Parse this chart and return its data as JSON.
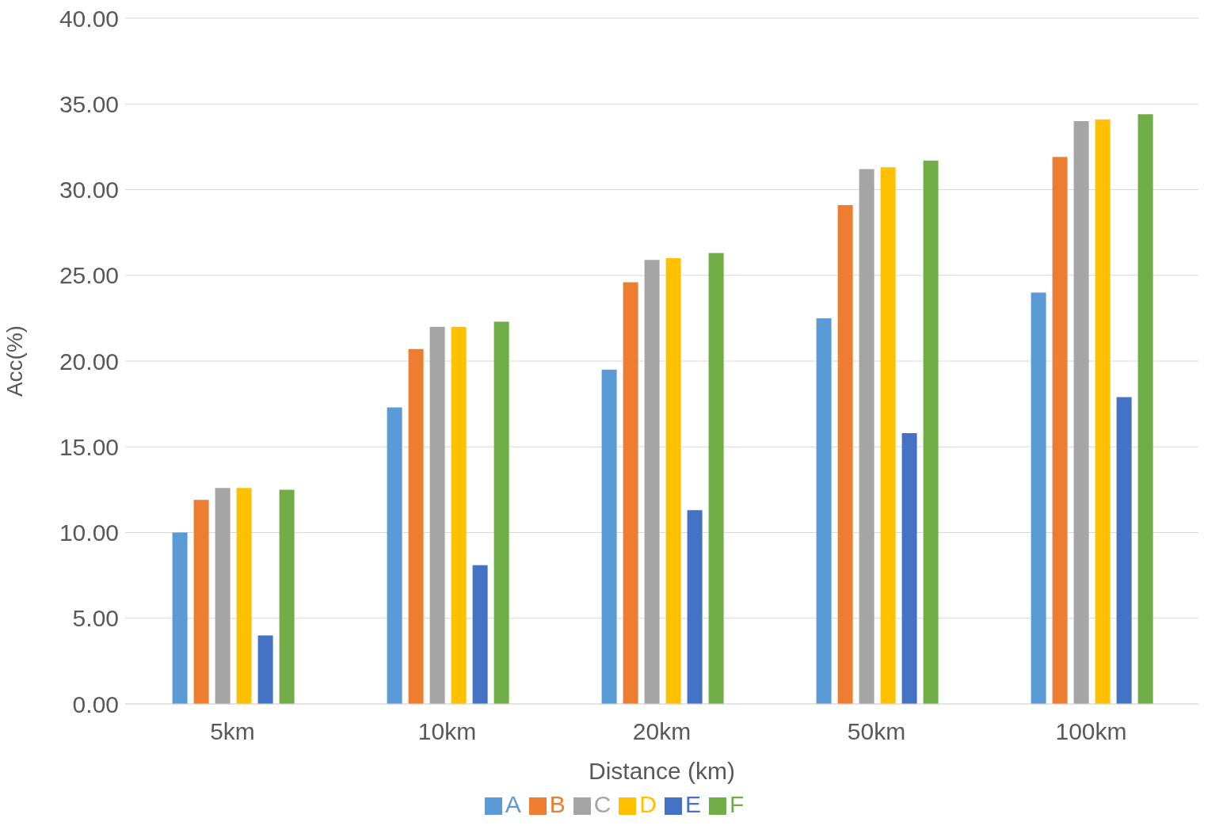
{
  "chart_data": {
    "type": "bar",
    "xlabel": "Distance (km)",
    "ylabel": "Acc(%)",
    "categories": [
      "5km",
      "10km",
      "20km",
      "50km",
      "100km"
    ],
    "series": [
      {
        "name": "A",
        "color": "#5b9bd5",
        "values": [
          10.0,
          17.3,
          19.5,
          22.5,
          24.0
        ]
      },
      {
        "name": "B",
        "color": "#ed7d31",
        "values": [
          11.9,
          20.7,
          24.6,
          29.1,
          31.9
        ]
      },
      {
        "name": "C",
        "color": "#a5a5a5",
        "values": [
          12.6,
          22.0,
          25.9,
          31.2,
          34.0
        ]
      },
      {
        "name": "D",
        "color": "#ffc000",
        "values": [
          12.6,
          22.0,
          26.0,
          31.3,
          34.1
        ]
      },
      {
        "name": "E",
        "color": "#4472c4",
        "values": [
          4.0,
          8.1,
          11.3,
          15.8,
          17.9
        ]
      },
      {
        "name": "F",
        "color": "#70ad47",
        "values": [
          12.5,
          22.3,
          26.3,
          31.7,
          34.4
        ]
      }
    ],
    "ylim": [
      0,
      40
    ],
    "yticks": [
      {
        "value": 0,
        "label": "0.00"
      },
      {
        "value": 5,
        "label": "5.00"
      },
      {
        "value": 10,
        "label": "10.00"
      },
      {
        "value": 15,
        "label": "15.00"
      },
      {
        "value": 20,
        "label": "20.00"
      },
      {
        "value": 25,
        "label": "25.00"
      },
      {
        "value": 30,
        "label": "30.00"
      },
      {
        "value": 35,
        "label": "35.00"
      },
      {
        "value": 40,
        "label": "40.00"
      }
    ],
    "grid": "y",
    "legend": "bottom"
  }
}
